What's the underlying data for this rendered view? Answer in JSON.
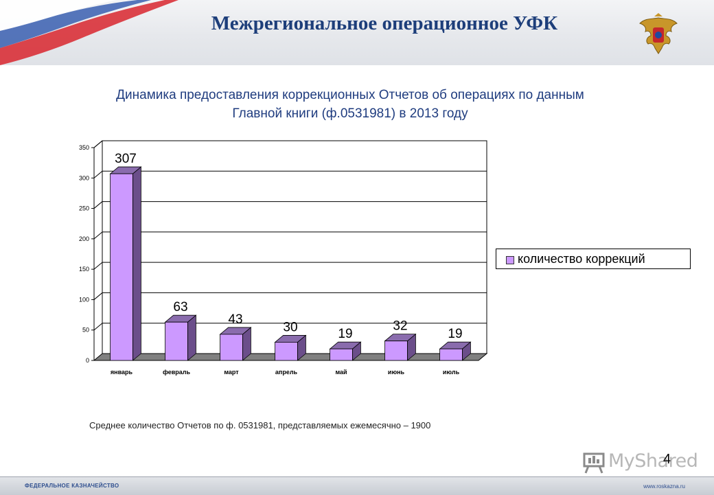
{
  "header": {
    "title": "Межрегиональное операционное УФК"
  },
  "subtitle": {
    "line1": "Динамика предоставления коррекционных Отчетов об операциях по данным",
    "line2": "Главной книги (ф.0531981) в 2013 году"
  },
  "chart_data": {
    "type": "bar",
    "categories": [
      "январь",
      "февраль",
      "март",
      "апрель",
      "май",
      "июнь",
      "июль"
    ],
    "series": [
      {
        "name": "количество коррекций",
        "values": [
          307,
          63,
          43,
          30,
          19,
          32,
          19
        ]
      }
    ],
    "data_labels": [
      "307",
      "63",
      "43",
      "30",
      "19",
      "32",
      "19"
    ],
    "ylim": [
      0,
      350
    ],
    "yticks": [
      0,
      50,
      100,
      150,
      200,
      250,
      300,
      350
    ],
    "grid": true,
    "legend_position": "right",
    "bar_color": "#cc99ff",
    "bar_side_color": "#6b4e8a",
    "bar_top_color": "#8a6cad",
    "floor_color": "#808080"
  },
  "note": "Среднее количество Отчетов по ф. 0531981, представляемых ежемесячно – 1900",
  "page_number": "4",
  "watermark": {
    "text": "MyShared",
    "icon": "presentation-board-icon"
  },
  "footer": {
    "left": "ФЕДЕРАЛЬНОЕ КАЗНАЧЕЙСТВО",
    "right": "www.roskazna.ru"
  },
  "colors": {
    "title": "#1d3e7a",
    "subtitle": "#1f3c7f"
  }
}
